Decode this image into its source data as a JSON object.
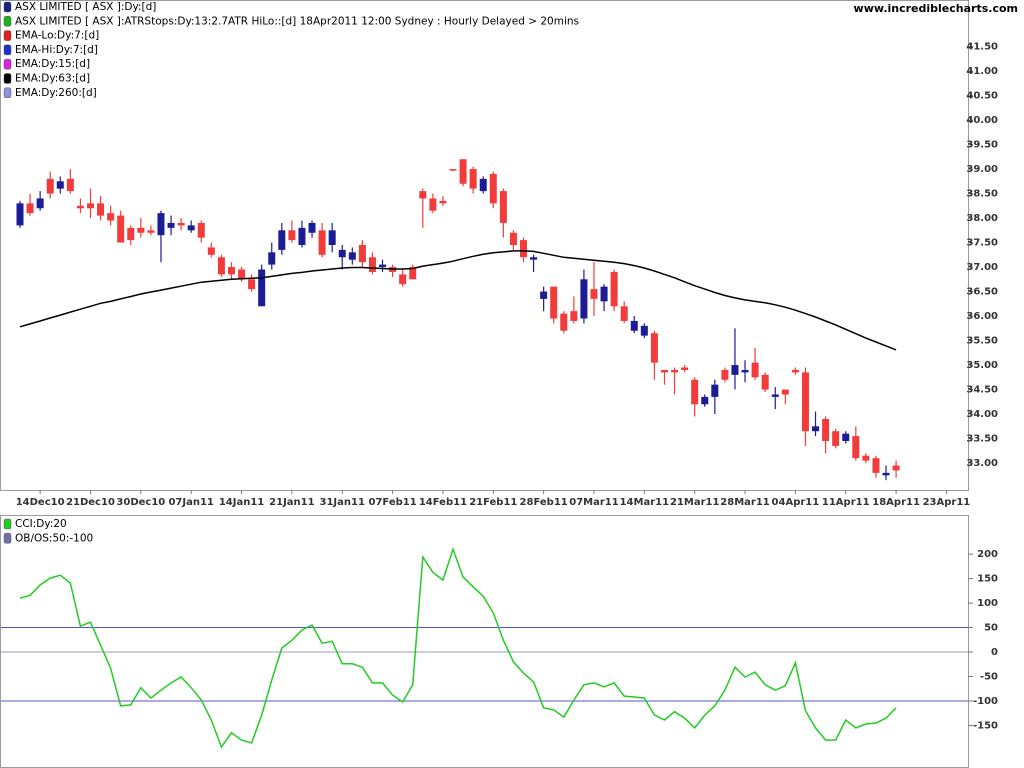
{
  "chart_data": [
    {
      "type": "candlestick",
      "source": "www.incrediblecharts.com",
      "legend": [
        {
          "name": "ASX LIMITED [ ASX ]:Dy:[d]",
          "color": "#1a2080"
        },
        {
          "name": "ASX LIMITED [ ASX ]:ATRStops:Dy:13:2.7ATR HiLo::[d]  18Apr2011 12:00 Sydney : Hourly Delayed > 20mins",
          "color": "#20b020"
        },
        {
          "name": "EMA-Lo:Dy:7:[d]",
          "color": "#e02020"
        },
        {
          "name": "EMA-Hi:Dy:7:[d]",
          "color": "#2030d0"
        },
        {
          "name": "EMA:Dy:15:[d]",
          "color": "#e020e0"
        },
        {
          "name": "EMA:Dy:63:[d]",
          "color": "#000000"
        },
        {
          "name": "EMA:Dy:260:[d]",
          "color": "#9090e0"
        }
      ],
      "up_color": "#1c1c96",
      "down_color": "#f23c3c",
      "categories": [
        null,
        null,
        "14Dec10",
        null,
        null,
        null,
        null,
        "21Dec10",
        null,
        null,
        null,
        null,
        "30Dec10",
        null,
        null,
        null,
        null,
        "07Jan11",
        null,
        null,
        null,
        null,
        "14Jan11",
        null,
        null,
        null,
        null,
        "21Jan11",
        null,
        null,
        null,
        null,
        "31Jan11",
        null,
        null,
        null,
        null,
        "07Feb11",
        null,
        null,
        null,
        null,
        "14Feb11",
        null,
        null,
        null,
        null,
        "21Feb11",
        null,
        null,
        null,
        null,
        "28Feb11",
        null,
        null,
        null,
        null,
        "07Mar11",
        null,
        null,
        null,
        null,
        "14Mar11",
        null,
        null,
        null,
        null,
        "21Mar11",
        null,
        null,
        null,
        null,
        "28Mar11",
        null,
        null,
        null,
        null,
        "04Apr11",
        null,
        null,
        null,
        null,
        "11Apr11",
        null,
        null,
        null,
        null,
        "18Apr11",
        null,
        null,
        null,
        null,
        "23Apr11"
      ],
      "open": [
        37.85,
        38.3,
        38.2,
        38.8,
        38.6,
        38.8,
        38.25,
        38.3,
        38.3,
        38.1,
        38.05,
        37.8,
        37.8,
        37.75,
        37.65,
        37.8,
        37.9,
        37.75,
        37.9,
        37.4,
        37.2,
        37.0,
        36.95,
        36.75,
        36.2,
        37.05,
        37.35,
        37.75,
        37.45,
        37.7,
        37.75,
        37.45,
        37.2,
        37.15,
        37.45,
        37.2,
        37.0,
        37.0,
        36.85,
        37.0,
        38.55,
        38.4,
        38.35,
        39.0,
        39.2,
        39.0,
        38.55,
        38.9,
        38.55,
        37.7,
        37.55,
        37.15,
        36.35,
        36.6,
        36.05,
        36.1,
        35.95,
        36.55,
        36.3,
        36.9,
        36.2,
        35.7,
        35.6,
        35.65,
        34.9,
        34.9,
        34.95,
        34.7,
        34.2,
        34.35,
        34.9,
        34.8,
        34.85,
        35.05,
        34.8,
        34.35,
        34.5,
        34.9,
        34.85,
        33.65,
        33.9,
        33.65,
        33.45,
        33.55,
        33.15,
        33.1,
        32.75,
        32.95,
        null,
        null,
        null,
        null,
        null
      ],
      "high": [
        38.35,
        38.5,
        38.55,
        38.95,
        38.85,
        39.0,
        38.4,
        38.6,
        38.45,
        38.25,
        38.15,
        37.85,
        38.0,
        37.85,
        38.15,
        38.05,
        38.0,
        37.95,
        37.95,
        37.5,
        37.25,
        37.1,
        37.0,
        36.85,
        37.05,
        37.5,
        37.9,
        37.95,
        37.95,
        37.95,
        37.9,
        37.9,
        37.45,
        37.4,
        37.55,
        37.3,
        37.15,
        37.05,
        36.95,
        37.05,
        38.6,
        38.5,
        38.45,
        39.0,
        39.2,
        39.05,
        38.85,
        38.95,
        38.6,
        37.75,
        37.6,
        37.25,
        36.6,
        36.6,
        36.1,
        36.4,
        36.95,
        37.1,
        36.65,
        36.95,
        36.3,
        36.0,
        35.85,
        35.7,
        34.9,
        34.95,
        35.0,
        34.75,
        34.4,
        34.7,
        34.95,
        35.75,
        35.1,
        35.35,
        34.85,
        34.55,
        34.5,
        34.95,
        34.95,
        34.05,
        33.95,
        33.7,
        33.65,
        33.75,
        33.2,
        33.15,
        32.95,
        33.05,
        null,
        null,
        null,
        null,
        null
      ],
      "low": [
        37.8,
        38.05,
        38.15,
        38.4,
        38.5,
        38.5,
        38.1,
        38.0,
        37.95,
        37.85,
        37.5,
        37.45,
        37.6,
        37.65,
        37.1,
        37.65,
        37.75,
        37.7,
        37.5,
        37.2,
        36.8,
        36.75,
        36.7,
        36.5,
        36.2,
        36.95,
        37.25,
        37.5,
        37.4,
        37.6,
        37.2,
        37.3,
        36.95,
        37.05,
        37.0,
        36.85,
        36.9,
        36.8,
        36.6,
        36.75,
        37.8,
        38.1,
        38.25,
        38.95,
        38.65,
        38.5,
        38.5,
        38.2,
        37.6,
        37.35,
        37.1,
        36.9,
        36.1,
        35.85,
        35.65,
        35.85,
        35.85,
        36.0,
        36.1,
        36.1,
        35.85,
        35.65,
        35.55,
        34.7,
        34.6,
        34.4,
        34.85,
        33.95,
        34.15,
        34.0,
        34.65,
        34.5,
        34.65,
        34.7,
        34.45,
        34.1,
        34.2,
        34.8,
        33.35,
        33.55,
        33.2,
        33.3,
        33.4,
        33.05,
        33.0,
        32.7,
        32.65,
        32.7,
        null,
        null,
        null,
        null,
        null
      ],
      "close": [
        38.3,
        38.1,
        38.4,
        38.5,
        38.75,
        38.55,
        38.2,
        38.2,
        38.05,
        37.95,
        37.5,
        37.55,
        37.7,
        37.7,
        38.1,
        37.9,
        37.85,
        37.85,
        37.6,
        37.25,
        36.85,
        36.85,
        36.75,
        36.55,
        36.95,
        37.3,
        37.75,
        37.55,
        37.8,
        37.9,
        37.25,
        37.75,
        37.35,
        37.3,
        37.1,
        36.9,
        37.05,
        36.9,
        36.65,
        36.75,
        38.4,
        38.15,
        38.3,
        38.98,
        38.7,
        38.6,
        38.8,
        38.3,
        37.9,
        37.45,
        37.2,
        37.2,
        36.5,
        35.95,
        35.7,
        35.9,
        36.75,
        36.35,
        36.6,
        36.2,
        35.9,
        35.9,
        35.8,
        35.05,
        34.85,
        34.85,
        34.9,
        34.2,
        34.35,
        34.6,
        34.7,
        35.0,
        34.9,
        34.75,
        34.5,
        34.4,
        34.4,
        34.85,
        33.65,
        33.75,
        33.45,
        33.35,
        33.6,
        33.1,
        33.05,
        32.8,
        32.8,
        32.85,
        null,
        null,
        null,
        null,
        null
      ],
      "series": [
        {
          "name": "EMA:Dy:63:[d]",
          "color": "#000000",
          "values": [
            35.78,
            35.84,
            35.9,
            35.96,
            36.02,
            36.08,
            36.14,
            36.2,
            36.26,
            36.3,
            36.35,
            36.4,
            36.45,
            36.49,
            36.53,
            36.57,
            36.61,
            36.65,
            36.69,
            36.71,
            36.73,
            36.75,
            36.76,
            36.77,
            36.78,
            36.81,
            36.84,
            36.87,
            36.89,
            36.92,
            36.94,
            36.96,
            36.98,
            36.99,
            36.99,
            36.98,
            36.97,
            36.96,
            36.96,
            36.97,
            37.02,
            37.05,
            37.08,
            37.12,
            37.17,
            37.22,
            37.26,
            37.29,
            37.31,
            37.33,
            37.33,
            37.32,
            37.28,
            37.24,
            37.2,
            37.18,
            37.16,
            37.14,
            37.12,
            37.1,
            37.07,
            37.03,
            36.98,
            36.92,
            36.85,
            36.78,
            36.7,
            36.62,
            36.55,
            36.48,
            36.42,
            36.37,
            36.33,
            36.3,
            36.27,
            36.23,
            36.18,
            36.12,
            36.05,
            35.98,
            35.9,
            35.82,
            35.73,
            35.64,
            35.55,
            35.47,
            35.39,
            35.31,
            null,
            null,
            null,
            null,
            null
          ]
        }
      ],
      "ylim": [
        32.45,
        42.45
      ],
      "yticks": [
        {
          "value": 33,
          "label": "33.00"
        },
        {
          "value": 33.5,
          "label": "33.50"
        },
        {
          "value": 34,
          "label": "34.00"
        },
        {
          "value": 34.5,
          "label": "34.50"
        },
        {
          "value": 35,
          "label": "35.00"
        },
        {
          "value": 35.5,
          "label": "35.50"
        },
        {
          "value": 36,
          "label": "36.00"
        },
        {
          "value": 36.5,
          "label": "36.50"
        },
        {
          "value": 37,
          "label": "37.00"
        },
        {
          "value": 37.5,
          "label": "37.50"
        },
        {
          "value": 38,
          "label": "38.00"
        },
        {
          "value": 38.5,
          "label": "38.50"
        },
        {
          "value": 39,
          "label": "39.00"
        },
        {
          "value": 39.5,
          "label": "39.50"
        },
        {
          "value": 40,
          "label": "40.00"
        },
        {
          "value": 40.5,
          "label": "40.50"
        },
        {
          "value": 41,
          "label": "41.00"
        },
        {
          "value": 41.5,
          "label": "41.50"
        }
      ]
    },
    {
      "type": "line",
      "legend": [
        {
          "name": "CCI:Dy:20",
          "color": "#22cc22"
        },
        {
          "name": "OB/OS:50:-100",
          "color": "#7070a8"
        }
      ],
      "series": [
        {
          "name": "CCI:Dy:20",
          "color": "#22cc22",
          "values": [
            110,
            116,
            137,
            151,
            157,
            141,
            53,
            61,
            14,
            -33,
            -110,
            -108,
            -73,
            -94,
            -78,
            -63,
            -51,
            -73,
            -98,
            -139,
            -194,
            -165,
            -180,
            -186,
            -129,
            -57,
            8,
            24,
            45,
            55,
            18,
            22,
            -24,
            -24,
            -31,
            -63,
            -63,
            -88,
            -102,
            -67,
            194,
            163,
            147,
            210,
            153,
            133,
            114,
            80,
            24,
            -20,
            -43,
            -61,
            -114,
            -118,
            -133,
            -98,
            -67,
            -63,
            -71,
            -63,
            -90,
            -92,
            -94,
            -129,
            -139,
            -122,
            -135,
            -155,
            -129,
            -110,
            -78,
            -31,
            -51,
            -41,
            -67,
            -78,
            -69,
            -22,
            -120,
            -155,
            -180,
            -180,
            -139,
            -155,
            -147,
            -145,
            -135,
            -114,
            null,
            null,
            null,
            null,
            null
          ]
        }
      ],
      "reference_lines": [
        {
          "value": 50,
          "color": "#5555c8"
        },
        {
          "value": 0,
          "color": "#9a9ac0"
        },
        {
          "value": -100,
          "color": "#5555c8"
        }
      ],
      "ylim": [
        -237,
        280
      ],
      "yticks": [
        200,
        150,
        100,
        50,
        0,
        -50,
        -100,
        -150
      ]
    }
  ]
}
